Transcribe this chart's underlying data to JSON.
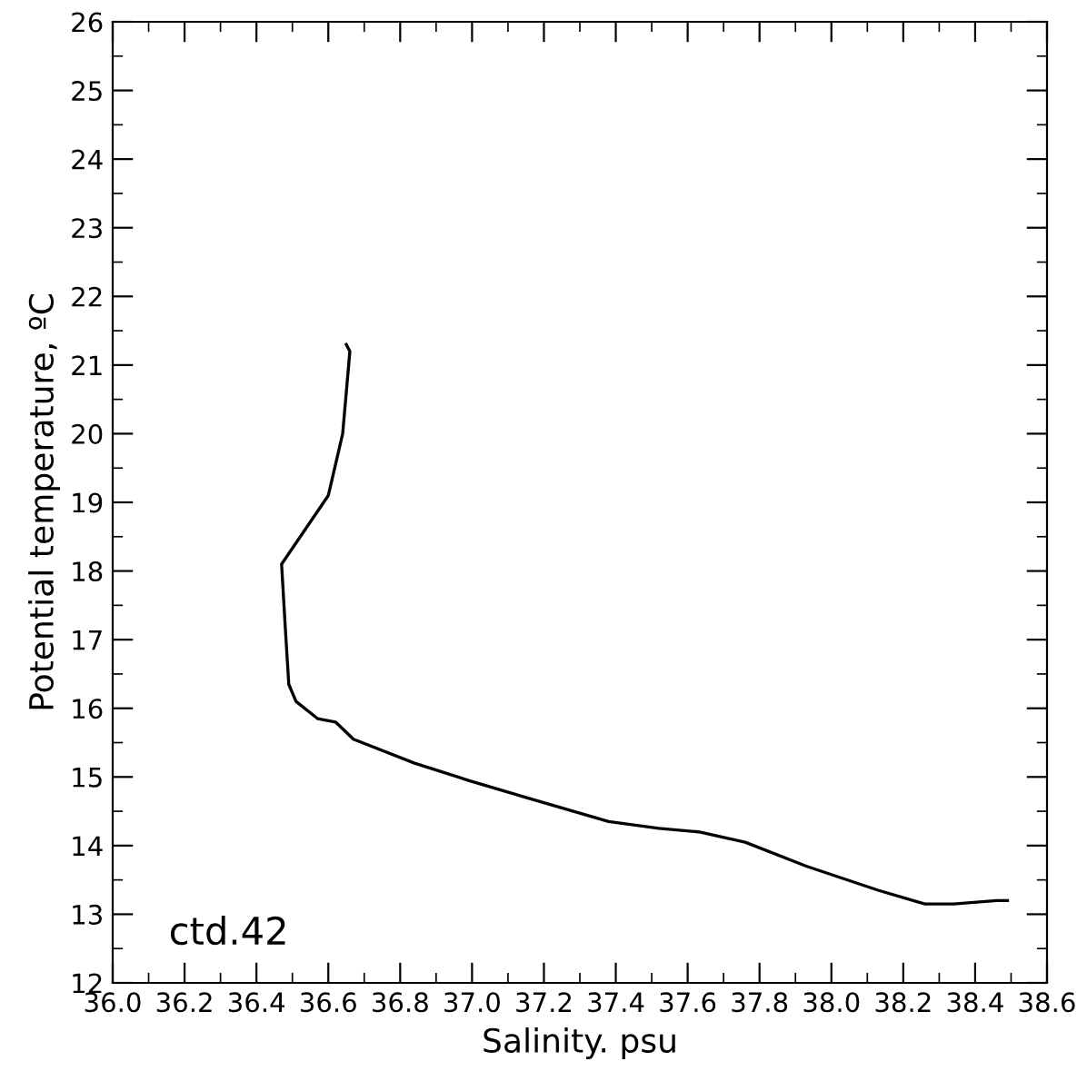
{
  "chart_data": {
    "type": "line",
    "xlabel": "Salinity. psu",
    "ylabel": "Potential temperature, ºC",
    "annotations": [
      "ctd.42"
    ],
    "color": "#000000",
    "x": [
      36.65,
      36.66,
      36.64,
      36.6,
      36.47,
      36.48,
      36.49,
      36.51,
      36.57,
      36.62,
      36.67,
      36.84,
      36.99,
      37.15,
      37.38,
      37.52,
      37.63,
      37.76,
      37.93,
      38.13,
      38.26,
      38.34,
      38.46,
      38.49
    ],
    "values": [
      21.3,
      21.2,
      20.0,
      19.1,
      18.1,
      17.2,
      16.35,
      16.1,
      15.85,
      15.8,
      15.55,
      15.2,
      14.95,
      14.7,
      14.35,
      14.25,
      14.2,
      14.05,
      13.7,
      13.35,
      13.15,
      13.15,
      13.2,
      13.2
    ],
    "xlim": [
      36.0,
      38.6
    ],
    "xticks": [
      {
        "value": 36.0,
        "label": "36.0"
      },
      {
        "value": 36.2,
        "label": "36.2"
      },
      {
        "value": 36.4,
        "label": "36.4"
      },
      {
        "value": 36.6,
        "label": "36.6"
      },
      {
        "value": 36.8,
        "label": "36.8"
      },
      {
        "value": 37.0,
        "label": "37.0"
      },
      {
        "value": 37.2,
        "label": "37.2"
      },
      {
        "value": 37.4,
        "label": "37.4"
      },
      {
        "value": 37.6,
        "label": "37.6"
      },
      {
        "value": 37.8,
        "label": "37.8"
      },
      {
        "value": 38.0,
        "label": "38.0"
      },
      {
        "value": 38.2,
        "label": "38.2"
      },
      {
        "value": 38.4,
        "label": "38.4"
      },
      {
        "value": 38.6,
        "label": "38.6"
      }
    ],
    "ylim": [
      12,
      26
    ],
    "yticks": [
      12,
      13,
      14,
      15,
      16,
      17,
      18,
      19,
      20,
      21,
      22,
      23,
      24,
      25,
      26
    ],
    "grid": false,
    "legend": false,
    "marker": "none",
    "line_style": "solid"
  }
}
